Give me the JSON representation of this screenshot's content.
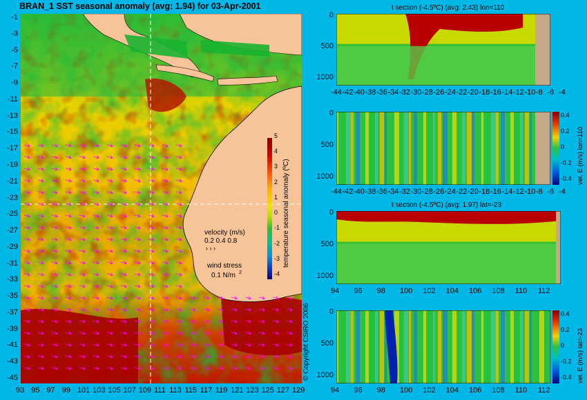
{
  "map": {
    "title": "BRAN_1 SST seasonal anomaly (avg: 1.94) for 03-Apr-2001",
    "lat_ticks": [
      "-1",
      "-3",
      "-5",
      "-7",
      "-9",
      "-11",
      "-13",
      "-15",
      "-17",
      "-19",
      "-21",
      "-23",
      "-25",
      "-27",
      "-29",
      "-31",
      "-33",
      "-35",
      "-37",
      "-39",
      "-41",
      "-43",
      "-45"
    ],
    "lon_ticks": [
      "93",
      "95",
      "97",
      "99",
      "101",
      "103",
      "105",
      "107",
      "109",
      "111",
      "113",
      "115",
      "117",
      "119",
      "121",
      "123",
      "125",
      "127",
      "129"
    ],
    "colorbar": {
      "label": "temperature seasonal anomaly (ºC)",
      "ticks": [
        "5",
        "4",
        "3",
        "2",
        "1",
        "0",
        "-1",
        "-2",
        "-3",
        "-4"
      ]
    },
    "legend": {
      "velocity_label": "velocity (m/s)",
      "velocity_values": "0.2 0.4 0.8",
      "wind_label": "wind stress",
      "wind_value": "0.1 N/m",
      "wind_sup": "2"
    },
    "copyright": "© Copyright CSIRO 2006",
    "colors": {
      "land": "#f7c49a",
      "sea_anom_high": "#a80000",
      "sea_anom_mid": "#f2c300",
      "sea_anom_low": "#18b820",
      "vector": "#ff00ff"
    }
  },
  "sections": [
    {
      "title": "t section (-4.5ºC) (avg: 2.43) lon=110",
      "x_ticks": [
        "-44",
        "-42",
        "-40",
        "-38",
        "-36",
        "-34",
        "-32",
        "-30",
        "-28",
        "-26",
        "-24",
        "-22",
        "-20",
        "-18",
        "-16",
        "-14",
        "-12",
        "-10",
        "-8",
        "-6",
        "-4"
      ],
      "y_ticks": [
        "0",
        "500",
        "1000"
      ]
    },
    {
      "title": "",
      "x_ticks": [
        "-44",
        "-42",
        "-40",
        "-38",
        "-36",
        "-34",
        "-32",
        "-30",
        "-28",
        "-26",
        "-24",
        "-22",
        "-20",
        "-18",
        "-16",
        "-14",
        "-12",
        "-10",
        "-8",
        "-6",
        "-4"
      ],
      "y_ticks": [
        "0",
        "500",
        "1000"
      ],
      "cbar_label": "vel. E (m/s) lon=110",
      "cbar_ticks": [
        "0.4",
        "0.2",
        "0",
        "-0.2",
        "-0.4"
      ]
    },
    {
      "title": "t section (-4.5ºC) (avg: 1.97) lat=-23",
      "x_ticks": [
        "94",
        "96",
        "98",
        "100",
        "102",
        "104",
        "106",
        "108",
        "110",
        "112"
      ],
      "y_ticks": [
        "0",
        "500",
        "1000"
      ]
    },
    {
      "title": "",
      "x_ticks": [
        "94",
        "96",
        "98",
        "100",
        "102",
        "104",
        "106",
        "108",
        "110",
        "112"
      ],
      "y_ticks": [
        "0",
        "500",
        "1000"
      ],
      "cbar_label": "vel. E (m/s) lat=-23",
      "cbar_ticks": [
        "0.4",
        "0.2",
        "0",
        "-0.2",
        "-0.4"
      ]
    }
  ]
}
